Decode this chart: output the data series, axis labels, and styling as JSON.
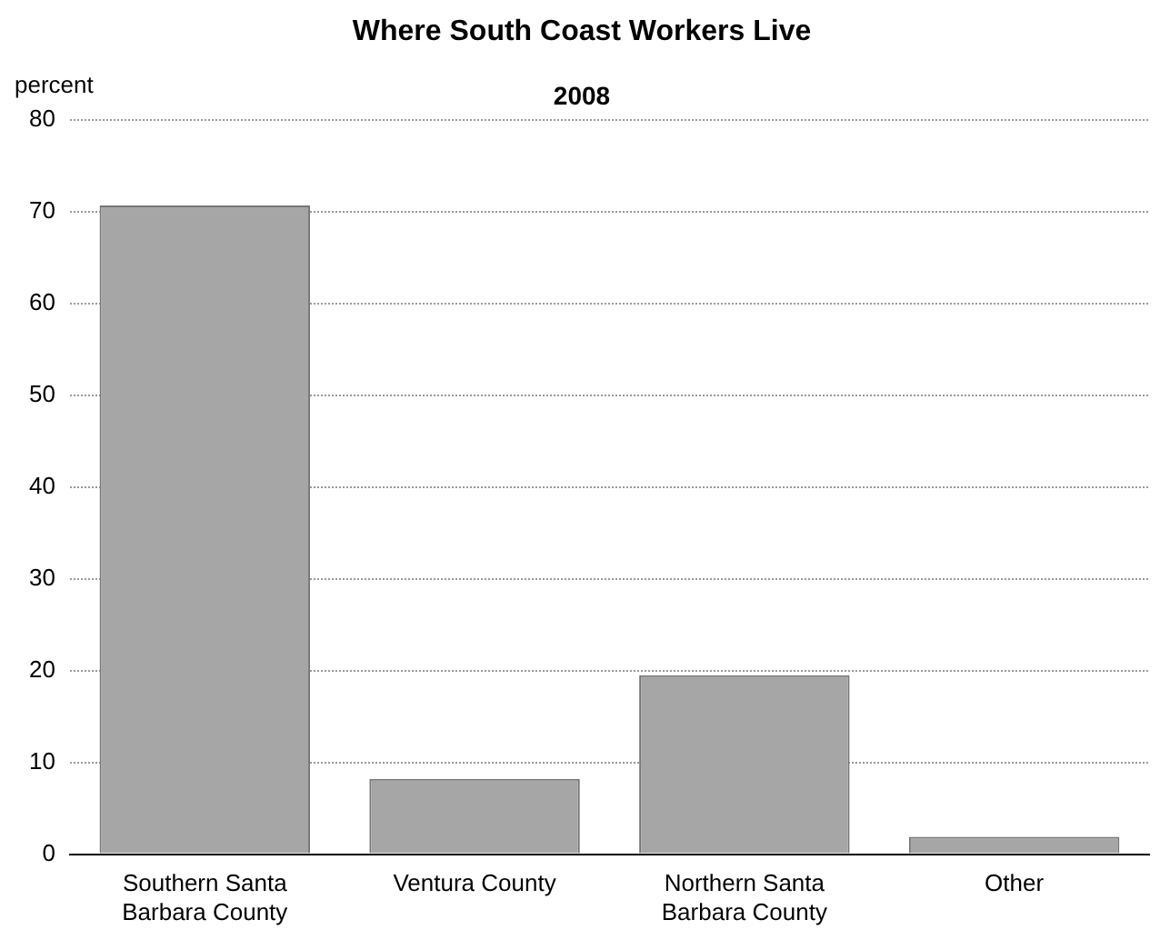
{
  "chart_data": {
    "type": "bar",
    "title": "Where South Coast Workers Live",
    "subtitle": "2008",
    "ylabel": "percent",
    "categories": [
      "Southern Santa Barbara County",
      "Ventura County",
      "Northern Santa Barbara County",
      "Other"
    ],
    "values": [
      70.7,
      8.2,
      19.5,
      1.9
    ],
    "color": "#a6a6a6",
    "ylim": [
      0,
      80
    ],
    "yticks": [
      0,
      10,
      20,
      30,
      40,
      50,
      60,
      70,
      80
    ],
    "grid": "y"
  }
}
